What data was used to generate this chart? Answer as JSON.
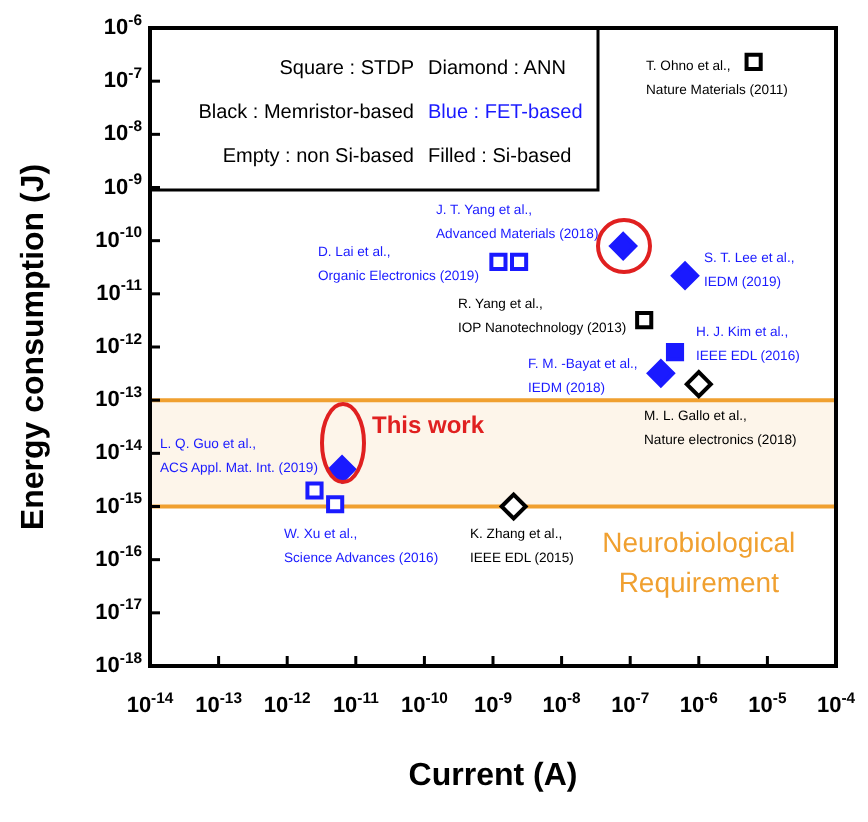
{
  "chart_data": {
    "type": "scatter",
    "xlabel": "Current (A)",
    "ylabel": "Energy consumption (J)",
    "log": "xy",
    "xlim": [
      1e-14,
      0.0001
    ],
    "ylim": [
      1e-18,
      1e-06
    ],
    "xticks": [
      {
        "value": 1e-14,
        "label": "10$^{-14}$"
      },
      {
        "value": 1e-13,
        "label": "10$^{-13}$"
      },
      {
        "value": 1e-12,
        "label": "10$^{-12}$"
      },
      {
        "value": 1e-11,
        "label": "10$^{-11}$"
      },
      {
        "value": 1e-10,
        "label": "10$^{-10}$"
      },
      {
        "value": 1e-09,
        "label": "10$^{-9}$"
      },
      {
        "value": 1e-08,
        "label": "10$^{-8}$"
      },
      {
        "value": 1e-07,
        "label": "10$^{-7}$"
      },
      {
        "value": 1e-06,
        "label": "10$^{-6}$"
      },
      {
        "value": 1e-05,
        "label": "10$^{-5}$"
      },
      {
        "value": 0.0001,
        "label": "10$^{-4}$"
      }
    ],
    "yticks": [
      {
        "value": 1e-18,
        "label": "10$^{-18}$"
      },
      {
        "value": 1e-17,
        "label": "10$^{-17}$"
      },
      {
        "value": 1e-16,
        "label": "10$^{-16}$"
      },
      {
        "value": 1e-15,
        "label": "10$^{-15}$"
      },
      {
        "value": 1e-14,
        "label": "10$^{-14}$"
      },
      {
        "value": 1e-13,
        "label": "10$^{-13}$"
      },
      {
        "value": 1e-12,
        "label": "10$^{-12}$"
      },
      {
        "value": 1e-11,
        "label": "10$^{-11}$"
      },
      {
        "value": 1e-10,
        "label": "10$^{-10}$"
      },
      {
        "value": 1e-09,
        "label": "10$^{-9}$"
      },
      {
        "value": 1e-08,
        "label": "10$^{-8}$"
      },
      {
        "value": 1e-07,
        "label": "10$^{-7}$"
      },
      {
        "value": 1e-06,
        "label": "10$^{-6}$"
      }
    ],
    "series": [
      {
        "marker": "square",
        "color": "#000000",
        "x": [
          6.3e-06,
          1.6e-07
        ],
        "values": [
          2.3e-07,
          3.2e-12
        ]
      },
      {
        "marker": "diamond",
        "color": "#000000",
        "x": [
          1e-06,
          2e-09
        ],
        "values": [
          2e-13,
          1e-15
        ]
      },
      {
        "marker": "square",
        "color": "#1a1aff",
        "x": [
          1.2e-09,
          2.4e-09,
          2.5e-12,
          5e-12
        ],
        "values": [
          4e-11,
          4e-11,
          2e-15,
          1.1e-15
        ]
      },
      {
        "marker": "square",
        "color": "#1a1aff",
        "x": [
          4.5e-07
        ],
        "values": [
          8e-13
        ]
      },
      {
        "marker": "diamond",
        "color": "#1a1aff",
        "x": [
          7.9e-08,
          6.3e-07,
          2.8e-07,
          6.3e-12
        ],
        "values": [
          7.9e-11,
          2.2e-11,
          3.2e-13,
          5e-15
        ]
      }
    ],
    "bands": [
      {
        "axis": "y",
        "from": 1e-15,
        "to": 1e-13,
        "label": "Neurobiological\nRequirement",
        "color": "#f0a030"
      }
    ],
    "annotations": [
      "Square : STDP",
      "Diamond : ANN",
      "Black : Memristor-based",
      "Blue : FET-based",
      "Empty : non Si-based",
      "Filled : Si-based",
      "T. Ohno et al.,\nNature Materials (2011)",
      "J. T. Yang et al.,\nAdvanced Materials (2018)",
      "D. Lai et al.,\nOrganic Electronics (2019)",
      "R. Yang et al.,\nIOP Nanotechnology (2013)",
      "S. T. Lee et al.,\nIEDM (2019)",
      "H. J. Kim et al.,\nIEEE EDL (2016)",
      "F. M. -Bayat et al.,\nIEDM (2018)",
      "M. L. Gallo et al.,\nNature electronics (2018)",
      "This work",
      "L. Q. Guo et al.,\nACS Appl. Mat. Int. (2019)",
      "W. Xu et al.,\nScience Advances (2016)",
      "K. Zhang et al.,\nIEEE EDL (2015)"
    ]
  }
}
